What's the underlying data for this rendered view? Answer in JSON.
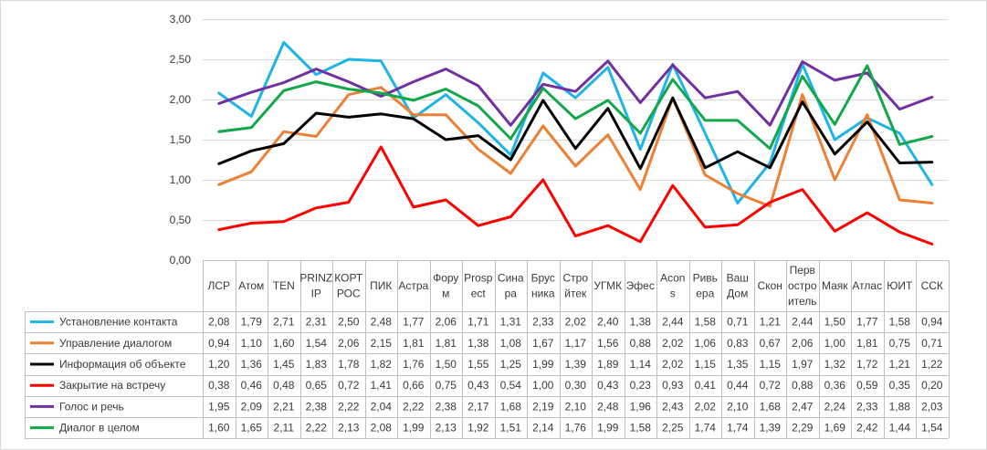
{
  "chart_data": {
    "type": "line",
    "title": "",
    "xlabel": "",
    "ylabel": "",
    "ylim": [
      0,
      3
    ],
    "yticks": [
      "0,00",
      "0,50",
      "1,00",
      "1,50",
      "2,00",
      "2,50",
      "3,00"
    ],
    "grid": true,
    "legend": "data-table",
    "categories": [
      [
        "ЛСР"
      ],
      [
        "Атом"
      ],
      [
        "TEN"
      ],
      [
        "PRINZ",
        "IP"
      ],
      [
        "КОРТ",
        "РОС"
      ],
      [
        "ПИК"
      ],
      [
        "Астра"
      ],
      [
        "Фору",
        "м"
      ],
      [
        "Prosp",
        "ect"
      ],
      [
        "Сина",
        "ра"
      ],
      [
        "Брус",
        "ника"
      ],
      [
        "Стро",
        "йтек"
      ],
      [
        "УГМК"
      ],
      [
        "Эфес"
      ],
      [
        "Acon",
        "s"
      ],
      [
        "Ривь",
        "ера"
      ],
      [
        "Ваш",
        "Дом"
      ],
      [
        "Скон"
      ],
      [
        "Перв",
        "остро",
        "итель"
      ],
      [
        "Маяк"
      ],
      [
        "Атлас"
      ],
      [
        "ЮИТ"
      ],
      [
        "ССК"
      ]
    ],
    "series": [
      {
        "name": "Установление контакта",
        "color": "#1fb4e8",
        "values": [
          2.08,
          1.79,
          2.71,
          2.31,
          2.5,
          2.48,
          1.77,
          2.06,
          1.71,
          1.31,
          2.33,
          2.02,
          2.4,
          1.38,
          2.44,
          1.58,
          0.71,
          1.21,
          2.44,
          1.5,
          1.77,
          1.58,
          0.94
        ],
        "labels": [
          "2,08",
          "1,79",
          "2,71",
          "2,31",
          "2,50",
          "2,48",
          "1,77",
          "2,06",
          "1,71",
          "1,31",
          "2,33",
          "2,02",
          "2,40",
          "1,38",
          "2,44",
          "1,58",
          "0,71",
          "1,21",
          "2,44",
          "1,50",
          "1,77",
          "1,58",
          "0,94"
        ]
      },
      {
        "name": "Управление диалогом",
        "color": "#ec8035",
        "values": [
          0.94,
          1.1,
          1.6,
          1.54,
          2.06,
          2.15,
          1.81,
          1.81,
          1.38,
          1.08,
          1.67,
          1.17,
          1.56,
          0.88,
          2.02,
          1.06,
          0.83,
          0.67,
          2.06,
          1.0,
          1.81,
          0.75,
          0.71
        ],
        "labels": [
          "0,94",
          "1,10",
          "1,60",
          "1,54",
          "2,06",
          "2,15",
          "1,81",
          "1,81",
          "1,38",
          "1,08",
          "1,67",
          "1,17",
          "1,56",
          "0,88",
          "2,02",
          "1,06",
          "0,83",
          "0,67",
          "2,06",
          "1,00",
          "1,81",
          "0,75",
          "0,71"
        ]
      },
      {
        "name": "Информация об объекте",
        "color": "#000000",
        "values": [
          1.2,
          1.36,
          1.45,
          1.83,
          1.78,
          1.82,
          1.76,
          1.5,
          1.55,
          1.25,
          1.99,
          1.39,
          1.89,
          1.14,
          2.02,
          1.15,
          1.35,
          1.15,
          1.97,
          1.32,
          1.72,
          1.21,
          1.22
        ],
        "labels": [
          "1,20",
          "1,36",
          "1,45",
          "1,83",
          "1,78",
          "1,82",
          "1,76",
          "1,50",
          "1,55",
          "1,25",
          "1,99",
          "1,39",
          "1,89",
          "1,14",
          "2,02",
          "1,15",
          "1,35",
          "1,15",
          "1,97",
          "1,32",
          "1,72",
          "1,21",
          "1,22"
        ]
      },
      {
        "name": "Закрытие на встречу",
        "color": "#ff0000",
        "values": [
          0.38,
          0.46,
          0.48,
          0.65,
          0.72,
          1.41,
          0.66,
          0.75,
          0.43,
          0.54,
          1.0,
          0.3,
          0.43,
          0.23,
          0.93,
          0.41,
          0.44,
          0.72,
          0.88,
          0.36,
          0.59,
          0.35,
          0.2
        ],
        "labels": [
          "0,38",
          "0,46",
          "0,48",
          "0,65",
          "0,72",
          "1,41",
          "0,66",
          "0,75",
          "0,43",
          "0,54",
          "1,00",
          "0,30",
          "0,43",
          "0,23",
          "0,93",
          "0,41",
          "0,44",
          "0,72",
          "0,88",
          "0,36",
          "0,59",
          "0,35",
          "0,20"
        ]
      },
      {
        "name": "Голос и речь",
        "color": "#7030a0",
        "values": [
          1.95,
          2.09,
          2.21,
          2.38,
          2.22,
          2.04,
          2.22,
          2.38,
          2.17,
          1.68,
          2.19,
          2.1,
          2.48,
          1.96,
          2.43,
          2.02,
          2.1,
          1.68,
          2.47,
          2.24,
          2.33,
          1.88,
          2.03
        ],
        "labels": [
          "1,95",
          "2,09",
          "2,21",
          "2,38",
          "2,22",
          "2,04",
          "2,22",
          "2,38",
          "2,17",
          "1,68",
          "2,19",
          "2,10",
          "2,48",
          "1,96",
          "2,43",
          "2,02",
          "2,10",
          "1,68",
          "2,47",
          "2,24",
          "2,33",
          "1,88",
          "2,03"
        ]
      },
      {
        "name": "Диалог в целом",
        "color": "#12a74a",
        "values": [
          1.6,
          1.65,
          2.11,
          2.22,
          2.13,
          2.08,
          1.99,
          2.13,
          1.92,
          1.51,
          2.14,
          1.76,
          1.99,
          1.58,
          2.25,
          1.74,
          1.74,
          1.39,
          2.29,
          1.69,
          2.42,
          1.44,
          1.54
        ],
        "labels": [
          "1,60",
          "1,65",
          "2,11",
          "2,22",
          "2,13",
          "2,08",
          "1,99",
          "2,13",
          "1,92",
          "1,51",
          "2,14",
          "1,76",
          "1,99",
          "1,58",
          "2,25",
          "1,74",
          "1,74",
          "1,39",
          "2,29",
          "1,69",
          "2,42",
          "1,44",
          "1,54"
        ]
      }
    ]
  }
}
